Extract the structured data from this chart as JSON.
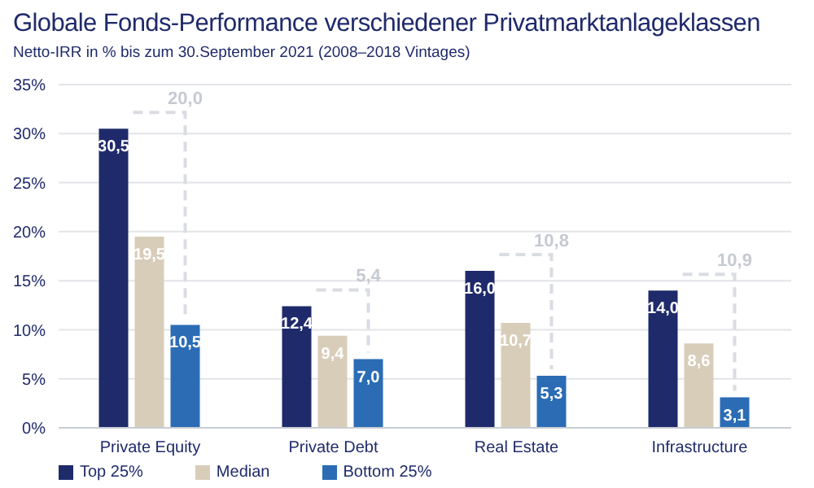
{
  "chart_data": {
    "type": "bar",
    "title": "Globale Fonds-Performance verschiedener Privatmarktanlageklassen",
    "subtitle": "Netto-IRR in % bis zum 30.September 2021 (2008–2018 Vintages)",
    "categories": [
      "Private Equity",
      "Private Debt",
      "Real Estate",
      "Infrastructure"
    ],
    "series": [
      {
        "name": "Top 25%",
        "color": "#1f2a6b",
        "values": [
          30.5,
          12.4,
          16.0,
          14.0
        ],
        "value_labels": [
          "30,5",
          "12,4",
          "16,0",
          "14,0"
        ]
      },
      {
        "name": "Median",
        "color": "#d8cdb9",
        "values": [
          19.5,
          9.4,
          10.7,
          8.6
        ],
        "value_labels": [
          "19,5",
          "9,4",
          "10,7",
          "8,6"
        ]
      },
      {
        "name": "Bottom 25%",
        "color": "#2b6cb5",
        "values": [
          10.5,
          7.0,
          5.3,
          3.1
        ],
        "value_labels": [
          "10,5",
          "7,0",
          "5,3",
          "3,1"
        ]
      }
    ],
    "ylim": [
      0,
      35
    ],
    "yticks": [
      {
        "value": 0,
        "label": "0%"
      },
      {
        "value": 5,
        "label": "5%"
      },
      {
        "value": 10,
        "label": "10%"
      },
      {
        "value": 15,
        "label": "15%"
      },
      {
        "value": 20,
        "label": "20%"
      },
      {
        "value": 25,
        "label": "25%"
      },
      {
        "value": 30,
        "label": "30%"
      },
      {
        "value": 35,
        "label": "35%"
      }
    ],
    "grid": "y",
    "legend": "bottom left",
    "annotations": [
      "20,0",
      "5,4",
      "10,8",
      "10,9"
    ]
  }
}
